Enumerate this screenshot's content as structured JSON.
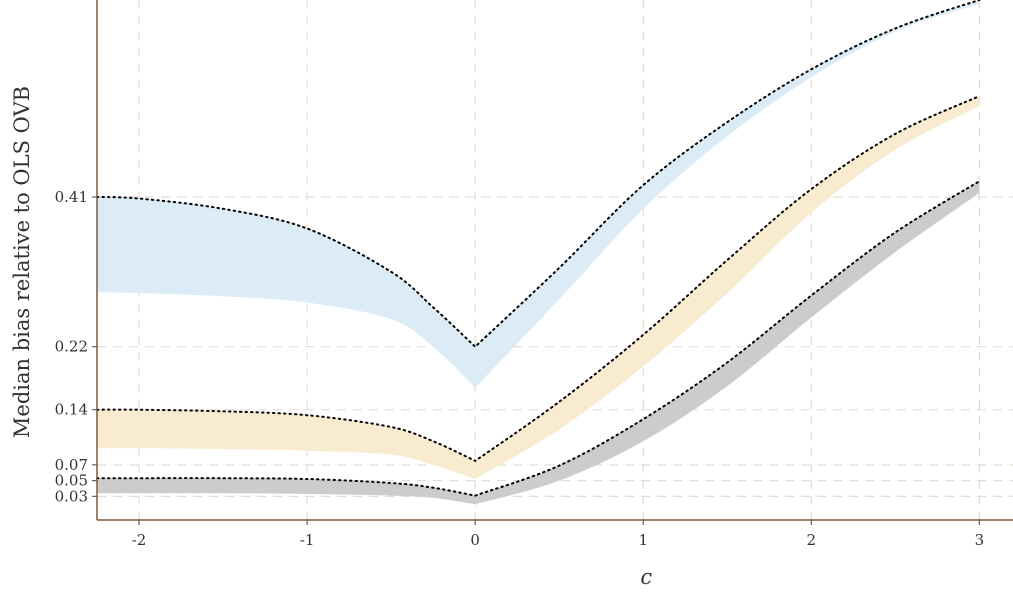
{
  "chart_data": {
    "type": "area",
    "xlabel": "c",
    "ylabel": "Median bias relative to OLS OVB",
    "xlim": [
      -2.25,
      3.2
    ],
    "ylim": [
      0.0,
      0.66
    ],
    "x_ticks": [
      -2,
      -1,
      0,
      1,
      2,
      3
    ],
    "x_tick_labels": [
      "-2",
      "-1",
      "0",
      "1",
      "2",
      "3"
    ],
    "y_ticks": [
      0.03,
      0.05,
      0.07,
      0.14,
      0.22,
      0.41
    ],
    "y_tick_labels": [
      "0.03",
      "0.05",
      "0.07",
      "0.14",
      "0.22",
      "0.41"
    ],
    "grid": true,
    "legend": "none",
    "series": [
      {
        "fill_color": "#dcecf7",
        "line_color": "#000000",
        "x": [
          -2.25,
          -2,
          -1.5,
          -1,
          -0.5,
          -0.25,
          0,
          0.5,
          1,
          1.5,
          2,
          2.5,
          3
        ],
        "upper": [
          0.41,
          0.408,
          0.395,
          0.37,
          0.315,
          0.27,
          0.22,
          0.32,
          0.425,
          0.505,
          0.572,
          0.624,
          0.66
        ],
        "lower": [
          0.289,
          0.288,
          0.284,
          0.276,
          0.255,
          0.22,
          0.168,
          0.28,
          0.395,
          0.487,
          0.562,
          0.62,
          0.655
        ]
      },
      {
        "fill_color": "#f8ebcf",
        "line_color": "#000000",
        "x": [
          -2.25,
          -2,
          -1.5,
          -1,
          -0.5,
          -0.25,
          0,
          0.5,
          1,
          1.5,
          2,
          2.5,
          3
        ],
        "upper": [
          0.14,
          0.14,
          0.138,
          0.133,
          0.118,
          0.1,
          0.075,
          0.15,
          0.235,
          0.33,
          0.42,
          0.49,
          0.538
        ],
        "lower": [
          0.091,
          0.091,
          0.09,
          0.088,
          0.083,
          0.07,
          0.052,
          0.115,
          0.195,
          0.288,
          0.39,
          0.47,
          0.525
        ]
      },
      {
        "fill_color": "#cccccc",
        "line_color": "#000000",
        "x": [
          -2.25,
          -2,
          -1.5,
          -1,
          -0.5,
          -0.25,
          0,
          0.5,
          1,
          1.5,
          2,
          2.5,
          3
        ],
        "upper": [
          0.053,
          0.053,
          0.053,
          0.052,
          0.047,
          0.041,
          0.031,
          0.069,
          0.128,
          0.2,
          0.285,
          0.365,
          0.43
        ],
        "lower": [
          0.034,
          0.034,
          0.034,
          0.033,
          0.031,
          0.028,
          0.02,
          0.05,
          0.1,
          0.17,
          0.257,
          0.34,
          0.415
        ]
      }
    ]
  }
}
